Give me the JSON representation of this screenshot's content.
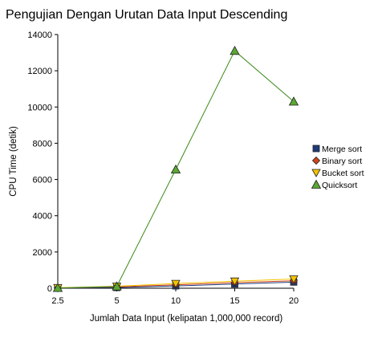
{
  "chart_data": {
    "type": "line",
    "title": "Pengujian Dengan Urutan Data Input Descending",
    "xlabel": "Jumlah Data Input (kelipatan 1,000,000 record)",
    "ylabel": "CPU Time (detik)",
    "categories": [
      "2.5",
      "5",
      "10",
      "15",
      "20"
    ],
    "ylim": [
      0,
      14000
    ],
    "yticks": [
      0,
      2000,
      4000,
      6000,
      8000,
      10000,
      12000,
      14000
    ],
    "grid": false,
    "legend_position": "right",
    "series": [
      {
        "name": "Merge sort",
        "values": [
          10,
          40,
          130,
          230,
          340
        ],
        "color": "#1f3a7a",
        "fill": "#1f3a7a",
        "marker": "square"
      },
      {
        "name": "Binary sort",
        "values": [
          20,
          80,
          190,
          310,
          410
        ],
        "color": "#d0441a",
        "fill": "#d0441a",
        "marker": "diamond"
      },
      {
        "name": "Bucket sort",
        "values": [
          30,
          110,
          260,
          390,
          510
        ],
        "color": "#f5c400",
        "fill": "#f5c400",
        "marker": "triangle-down"
      },
      {
        "name": "Quicksort",
        "values": [
          15,
          100,
          6550,
          13100,
          10300
        ],
        "color": "#3a8a1a",
        "fill": "#5aa832",
        "marker": "triangle-up"
      }
    ]
  }
}
